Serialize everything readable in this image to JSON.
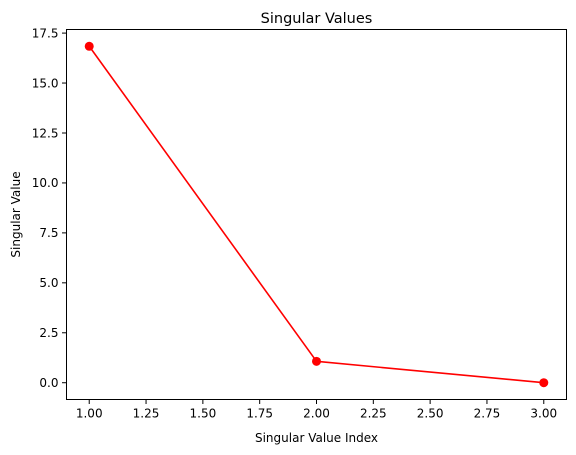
{
  "chart_data": {
    "type": "line",
    "title": "Singular Values",
    "xlabel": "Singular Value Index",
    "ylabel": "Singular Value",
    "xlim": [
      0.9,
      3.1
    ],
    "ylim": [
      -0.84,
      17.68
    ],
    "x_ticks": [
      1.0,
      1.25,
      1.5,
      1.75,
      2.0,
      2.25,
      2.5,
      2.75,
      3.0
    ],
    "x_tick_labels": [
      "1.00",
      "1.25",
      "1.50",
      "1.75",
      "2.00",
      "2.25",
      "2.50",
      "2.75",
      "3.00"
    ],
    "y_ticks": [
      0.0,
      2.5,
      5.0,
      7.5,
      10.0,
      12.5,
      15.0,
      17.5
    ],
    "y_tick_labels": [
      "0.0",
      "2.5",
      "5.0",
      "7.5",
      "10.0",
      "12.5",
      "15.0",
      "17.5"
    ],
    "grid": false,
    "series": [
      {
        "color": "#ff0000",
        "marker": "circle",
        "x": [
          1,
          2,
          3
        ],
        "y": [
          16.84,
          1.07,
          0.0
        ]
      }
    ]
  }
}
